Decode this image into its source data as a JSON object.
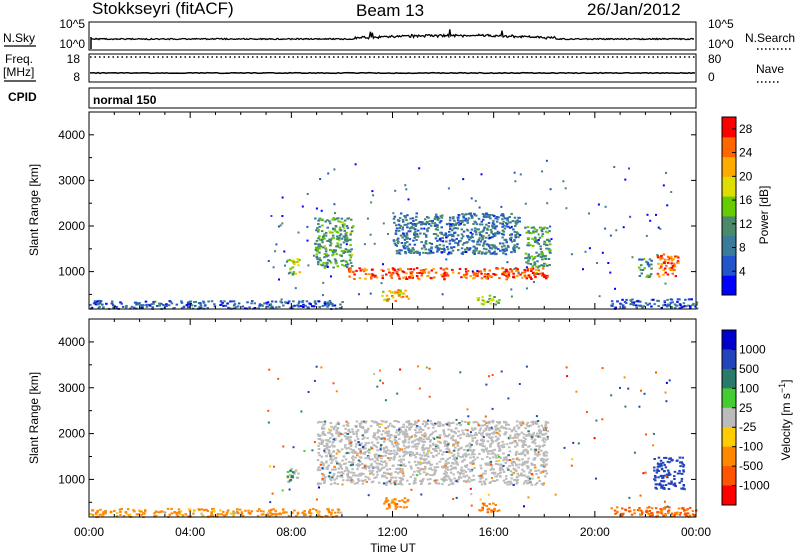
{
  "header": {
    "title": "Stokkseyri (fitACF)",
    "beam": "Beam 13",
    "date": "26/Jan/2012"
  },
  "strips": {
    "nsky": {
      "label": "N.Sky",
      "right_label": "N.Search",
      "left_ticks": [
        "10^5",
        "10^0"
      ],
      "right_ticks": [
        "10^5",
        "10^0"
      ]
    },
    "freq": {
      "label_line1": "Freq.",
      "label_line2": "[MHz]",
      "left_ticks": [
        "18",
        "8"
      ],
      "right_ticks": [
        "80",
        "0"
      ],
      "right_label": "Nave"
    },
    "cpid": {
      "label": "CPID",
      "value": "normal 150"
    }
  },
  "colors": {
    "power_scale": [
      "#0000ff",
      "#2255cc",
      "#3a7a9a",
      "#4a8a6a",
      "#66cc00",
      "#dddd00",
      "#ffaa00",
      "#ff6600",
      "#ff0000"
    ],
    "velocity_scale": [
      "#0000cc",
      "#2244bb",
      "#2a7a6a",
      "#44cc33",
      "#bbbbbb",
      "#ffcc00",
      "#ff8800",
      "#ff5500",
      "#ff0000"
    ],
    "ground_scatter": "#bbbbbb"
  },
  "chart_data": [
    {
      "type": "heatmap",
      "name": "power",
      "ylabel": "Slant Range [km]",
      "xlabel": "Time UT",
      "x_ticks": [
        "00:00",
        "04:00",
        "08:00",
        "12:00",
        "16:00",
        "20:00",
        "00:00"
      ],
      "y_ticks": [
        "1000",
        "2000",
        "3000",
        "4000"
      ],
      "xlim_hours": [
        0,
        24
      ],
      "ylim_km": [
        180,
        4500
      ],
      "colorbar": {
        "label": "Power [dB]",
        "ticks": [
          "4",
          "8",
          "12",
          "16",
          "20",
          "24",
          "28"
        ],
        "range": [
          0,
          30
        ]
      },
      "regions": [
        {
          "t": [
            10.2,
            18.1
          ],
          "range_km": [
            850,
            1100
          ],
          "value": 26
        },
        {
          "t": [
            8.9,
            10.4
          ],
          "range_km": [
            1100,
            2200
          ],
          "value": 12
        },
        {
          "t": [
            17.2,
            18.2
          ],
          "range_km": [
            1100,
            2000
          ],
          "value": 12
        },
        {
          "t": [
            12.0,
            17.0
          ],
          "range_km": [
            1400,
            2300
          ],
          "value": 8
        },
        {
          "t": [
            11.5,
            12.6
          ],
          "range_km": [
            380,
            620
          ],
          "value": 20
        },
        {
          "t": [
            15.3,
            16.2
          ],
          "range_km": [
            300,
            500
          ],
          "value": 16
        },
        {
          "t": [
            7.8,
            8.3
          ],
          "range_km": [
            950,
            1300
          ],
          "value": 16
        },
        {
          "t": [
            22.4,
            23.3
          ],
          "range_km": [
            900,
            1400
          ],
          "value": 26
        },
        {
          "t": [
            21.7,
            22.2
          ],
          "range_km": [
            900,
            1300
          ],
          "value": 10
        },
        {
          "t": [
            20.6,
            24.0
          ],
          "range_km": [
            200,
            420
          ],
          "value": 6
        },
        {
          "t": [
            0.0,
            10.0
          ],
          "range_km": [
            200,
            380
          ],
          "value": 6
        }
      ]
    },
    {
      "type": "heatmap",
      "name": "velocity",
      "ylabel": "Slant Range [km]",
      "xlabel": "Time UT",
      "x_ticks": [
        "00:00",
        "04:00",
        "08:00",
        "12:00",
        "16:00",
        "20:00",
        "00:00"
      ],
      "y_ticks": [
        "1000",
        "2000",
        "3000",
        "4000"
      ],
      "xlim_hours": [
        0,
        24
      ],
      "ylim_km": [
        180,
        4500
      ],
      "colorbar": {
        "label": "Velocity [m s^-1]",
        "ticks": [
          "1000",
          "500",
          "100",
          "25",
          "-25",
          "-100",
          "-500",
          "-1000"
        ]
      },
      "regions": [
        {
          "t": [
            9.0,
            18.1
          ],
          "range_km": [
            900,
            2300
          ],
          "value": "ground scatter"
        },
        {
          "t": [
            11.5,
            12.6
          ],
          "range_km": [
            380,
            620
          ],
          "value": -200
        },
        {
          "t": [
            15.3,
            16.2
          ],
          "range_km": [
            300,
            500
          ],
          "value": -200
        },
        {
          "t": [
            7.8,
            8.3
          ],
          "range_km": [
            950,
            1300
          ],
          "value": 100
        },
        {
          "t": [
            22.3,
            23.5
          ],
          "range_km": [
            800,
            1500
          ],
          "value": 600
        },
        {
          "t": [
            20.6,
            24.0
          ],
          "range_km": [
            200,
            420
          ],
          "value": -300
        },
        {
          "t": [
            0.0,
            10.0
          ],
          "range_km": [
            200,
            380
          ],
          "value": -150
        }
      ]
    }
  ]
}
